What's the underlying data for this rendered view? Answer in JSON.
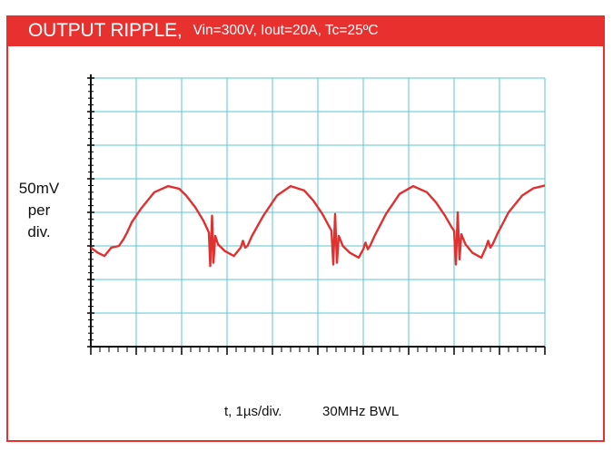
{
  "header": {
    "title": "OUTPUT RIPPLE,",
    "conditions": "Vin=300V, Iout=20A, Tc=25ºC"
  },
  "y_label": {
    "line1": "50mV",
    "line2": "per",
    "line3": "div."
  },
  "x_label": {
    "time": "t, 1µs/div.",
    "bandwidth": "30MHz BWL"
  },
  "colors": {
    "accent": "#e8312f",
    "grid": "#5bc6d2",
    "trace": "#e03030",
    "axis": "#111111"
  },
  "chart_data": {
    "type": "line",
    "x_divisions": 10,
    "y_divisions": 8,
    "x_unit_per_div": "1µs",
    "y_unit_per_div": "50mV",
    "grid": true,
    "minor_ticks_per_div": 5,
    "series": [
      {
        "x": [
          0,
          0.15,
          0.3,
          0.45,
          0.62,
          0.72,
          0.8,
          0.9,
          1.1,
          1.4,
          1.7,
          1.95,
          2.1,
          2.3,
          2.48,
          2.55,
          2.6,
          2.63,
          2.67,
          2.7,
          2.74,
          2.8,
          2.95,
          3.15,
          3.3,
          3.35,
          3.4,
          3.45,
          3.55,
          3.8,
          4.1,
          4.4,
          4.7,
          4.9,
          5.1,
          5.2,
          5.3,
          5.34,
          5.38,
          5.42,
          5.46,
          5.55,
          5.7,
          5.9,
          6.0,
          6.05,
          6.1,
          6.15,
          6.25,
          6.5,
          6.8,
          7.1,
          7.4,
          7.6,
          7.8,
          7.95,
          8.0,
          8.04,
          8.08,
          8.12,
          8.16,
          8.25,
          8.4,
          8.6,
          8.7,
          8.75,
          8.8,
          8.85,
          8.95,
          9.2,
          9.5,
          9.75,
          10.0
        ],
        "y": [
          -0.05,
          -0.2,
          -0.3,
          -0.05,
          0.0,
          0.2,
          0.4,
          0.7,
          1.1,
          1.6,
          1.78,
          1.7,
          1.5,
          1.15,
          0.75,
          0.55,
          0.4,
          -0.6,
          0.9,
          -0.5,
          0.3,
          0.05,
          -0.15,
          -0.3,
          -0.05,
          0.15,
          -0.05,
          0.0,
          0.3,
          0.9,
          1.5,
          1.78,
          1.65,
          1.35,
          0.95,
          0.7,
          0.45,
          -0.55,
          0.95,
          -0.5,
          0.3,
          0.0,
          -0.2,
          -0.35,
          -0.1,
          0.1,
          -0.1,
          0.0,
          0.3,
          0.95,
          1.55,
          1.78,
          1.6,
          1.3,
          0.9,
          0.55,
          0.45,
          -0.55,
          1.0,
          -0.4,
          0.35,
          0.05,
          -0.2,
          -0.35,
          -0.05,
          0.15,
          -0.05,
          0.05,
          0.35,
          1.0,
          1.5,
          1.72,
          1.8
        ]
      }
    ]
  }
}
